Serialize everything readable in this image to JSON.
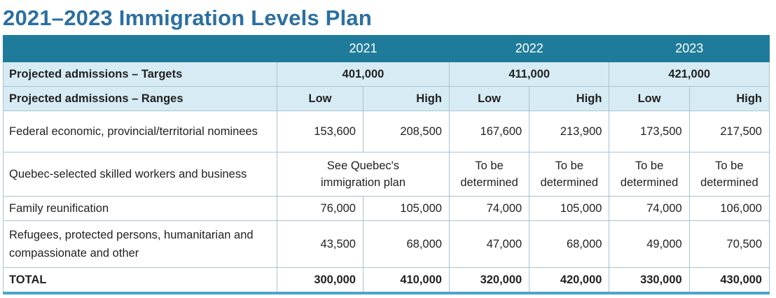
{
  "title": "2021–2023 Immigration Levels Plan",
  "table": {
    "years": [
      "2021",
      "2022",
      "2023"
    ],
    "targets": {
      "label": "Projected admissions – Targets",
      "values": [
        "401,000",
        "411,000",
        "421,000"
      ]
    },
    "ranges": {
      "label": "Projected admissions – Ranges",
      "values": [
        "Low",
        "High",
        "Low",
        "High",
        "Low",
        "High"
      ]
    },
    "rows": [
      {
        "label": "Federal economic, provincial/territorial nominees",
        "cells": [
          "153,600",
          "208,500",
          "167,600",
          "213,900",
          "173,500",
          "217,500"
        ]
      },
      {
        "label": "Quebec-selected skilled workers and business",
        "cells": [
          "See Quebec's immigration plan",
          "To be determined",
          "To be determined",
          "To be determined",
          "To be determined"
        ]
      },
      {
        "label": "Family reunification",
        "cells": [
          "76,000",
          "105,000",
          "74,000",
          "105,000",
          "74,000",
          "106,000"
        ]
      },
      {
        "label": "Refugees, protected persons, humanitarian and compassionate and other",
        "cells": [
          "43,500",
          "68,000",
          "47,000",
          "68,000",
          "49,000",
          "70,500"
        ]
      }
    ],
    "total": {
      "label": "TOTAL",
      "cells": [
        "300,000",
        "410,000",
        "320,000",
        "420,000",
        "330,000",
        "430,000"
      ]
    }
  }
}
